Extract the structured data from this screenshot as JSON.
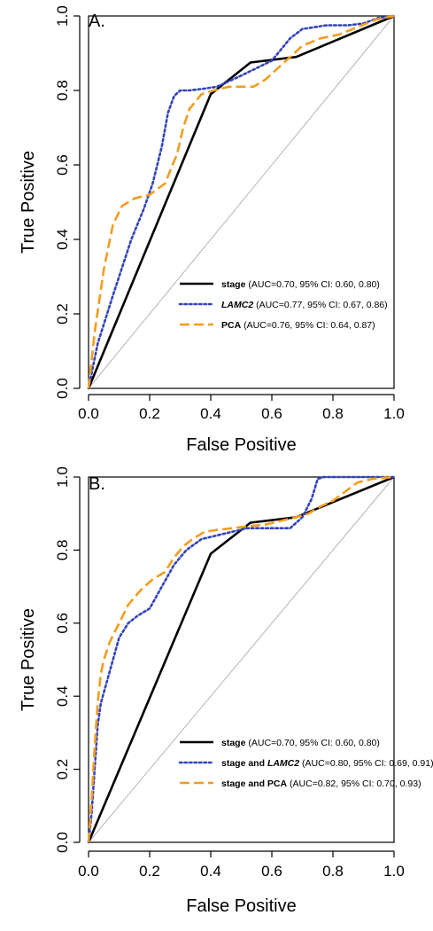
{
  "chart_data": [
    {
      "type": "line",
      "panel_label": "A.",
      "xlabel": "False Positive",
      "ylabel": "True Positive",
      "xlim": [
        0,
        1
      ],
      "ylim": [
        0,
        1
      ],
      "xticks": [
        "0.0",
        "0.2",
        "0.4",
        "0.6",
        "0.8",
        "1.0"
      ],
      "yticks": [
        "0.0",
        "0.2",
        "0.4",
        "0.6",
        "0.8",
        "1.0"
      ],
      "grid": false,
      "diagonal_reference": true,
      "legend_position": "bottom-right",
      "series": [
        {
          "name": "stage",
          "legend_detail": "(AUC=0.70, 95% CI: 0.60, 0.80)",
          "italic": false,
          "color": "#000000",
          "style": "solid",
          "x": [
            0,
            0.4,
            0.53,
            0.68,
            1.0
          ],
          "y": [
            0,
            0.79,
            0.875,
            0.89,
            1.0
          ]
        },
        {
          "name": "LAMC2",
          "legend_detail": "(AUC=0.77, 95% CI: 0.67, 0.86)",
          "italic": true,
          "color": "#3344bb",
          "style": "dotted",
          "x": [
            0,
            0.03,
            0.08,
            0.14,
            0.18,
            0.21,
            0.24,
            0.26,
            0.28,
            0.3,
            0.33,
            0.38,
            0.42,
            0.46,
            0.5,
            0.55,
            0.6,
            0.63,
            0.66,
            0.7,
            0.78,
            0.85,
            0.9,
            0.95,
            1.0
          ],
          "y": [
            0,
            0.12,
            0.25,
            0.4,
            0.48,
            0.55,
            0.65,
            0.74,
            0.785,
            0.8,
            0.8,
            0.805,
            0.81,
            0.825,
            0.84,
            0.86,
            0.88,
            0.91,
            0.94,
            0.965,
            0.975,
            0.975,
            0.98,
            0.995,
            1.0
          ]
        },
        {
          "name": "PCA",
          "legend_detail": "(AUC=0.76, 95% CI: 0.64, 0.87)",
          "italic": false,
          "color": "#f39c1f",
          "style": "dashed",
          "x": [
            0,
            0.02,
            0.05,
            0.08,
            0.11,
            0.15,
            0.2,
            0.25,
            0.29,
            0.31,
            0.33,
            0.37,
            0.41,
            0.46,
            0.5,
            0.54,
            0.58,
            0.62,
            0.66,
            0.7,
            0.76,
            0.82,
            0.88,
            0.94,
            1.0
          ],
          "y": [
            0,
            0.15,
            0.32,
            0.44,
            0.49,
            0.51,
            0.52,
            0.55,
            0.63,
            0.7,
            0.75,
            0.79,
            0.8,
            0.81,
            0.81,
            0.81,
            0.83,
            0.86,
            0.89,
            0.92,
            0.94,
            0.95,
            0.97,
            0.99,
            1.0
          ]
        }
      ]
    },
    {
      "type": "line",
      "panel_label": "B.",
      "xlabel": "False Positive",
      "ylabel": "True Positive",
      "xlim": [
        0,
        1
      ],
      "ylim": [
        0,
        1
      ],
      "xticks": [
        "0.0",
        "0.2",
        "0.4",
        "0.6",
        "0.8",
        "1.0"
      ],
      "yticks": [
        "0.0",
        "0.2",
        "0.4",
        "0.6",
        "0.8",
        "1.0"
      ],
      "grid": false,
      "diagonal_reference": true,
      "legend_position": "bottom-right",
      "series": [
        {
          "name": "stage",
          "legend_detail": "(AUC=0.70, 95% CI: 0.60, 0.80)",
          "italic": false,
          "color": "#000000",
          "style": "solid",
          "x": [
            0,
            0.4,
            0.53,
            0.68,
            1.0
          ],
          "y": [
            0,
            0.79,
            0.875,
            0.89,
            1.0
          ]
        },
        {
          "name": "stage and LAMC2",
          "name_parts": [
            "stage and ",
            "LAMC2"
          ],
          "legend_detail": "(AUC=0.80, 95% CI: 0.69, 0.91)",
          "italic": false,
          "color": "#3344bb",
          "style": "dotted",
          "x": [
            0,
            0.01,
            0.02,
            0.03,
            0.04,
            0.06,
            0.08,
            0.1,
            0.13,
            0.16,
            0.2,
            0.24,
            0.28,
            0.32,
            0.37,
            0.42,
            0.47,
            0.52,
            0.58,
            0.63,
            0.66,
            0.7,
            0.73,
            0.75,
            0.77,
            0.8,
            0.88,
            1.0
          ],
          "y": [
            0,
            0.08,
            0.2,
            0.32,
            0.38,
            0.44,
            0.5,
            0.56,
            0.6,
            0.62,
            0.64,
            0.7,
            0.76,
            0.8,
            0.83,
            0.84,
            0.85,
            0.86,
            0.86,
            0.86,
            0.86,
            0.89,
            0.94,
            0.995,
            1.0,
            1.0,
            1.0,
            1.0
          ]
        },
        {
          "name": "stage and PCA",
          "legend_detail": "(AUC=0.82, 95% CI: 0.70, 0.93)",
          "italic": false,
          "color": "#f39c1f",
          "style": "dashed",
          "x": [
            0,
            0.01,
            0.02,
            0.03,
            0.04,
            0.05,
            0.07,
            0.1,
            0.13,
            0.17,
            0.21,
            0.25,
            0.28,
            0.31,
            0.34,
            0.38,
            0.42,
            0.47,
            0.52,
            0.58,
            0.63,
            0.68,
            0.72,
            0.76,
            0.8,
            0.84,
            0.88,
            0.93,
            1.0
          ],
          "y": [
            0,
            0.12,
            0.26,
            0.38,
            0.46,
            0.5,
            0.55,
            0.6,
            0.65,
            0.69,
            0.72,
            0.74,
            0.78,
            0.81,
            0.83,
            0.85,
            0.855,
            0.86,
            0.865,
            0.87,
            0.88,
            0.89,
            0.9,
            0.92,
            0.935,
            0.96,
            0.985,
            0.995,
            1.0
          ]
        }
      ]
    }
  ]
}
